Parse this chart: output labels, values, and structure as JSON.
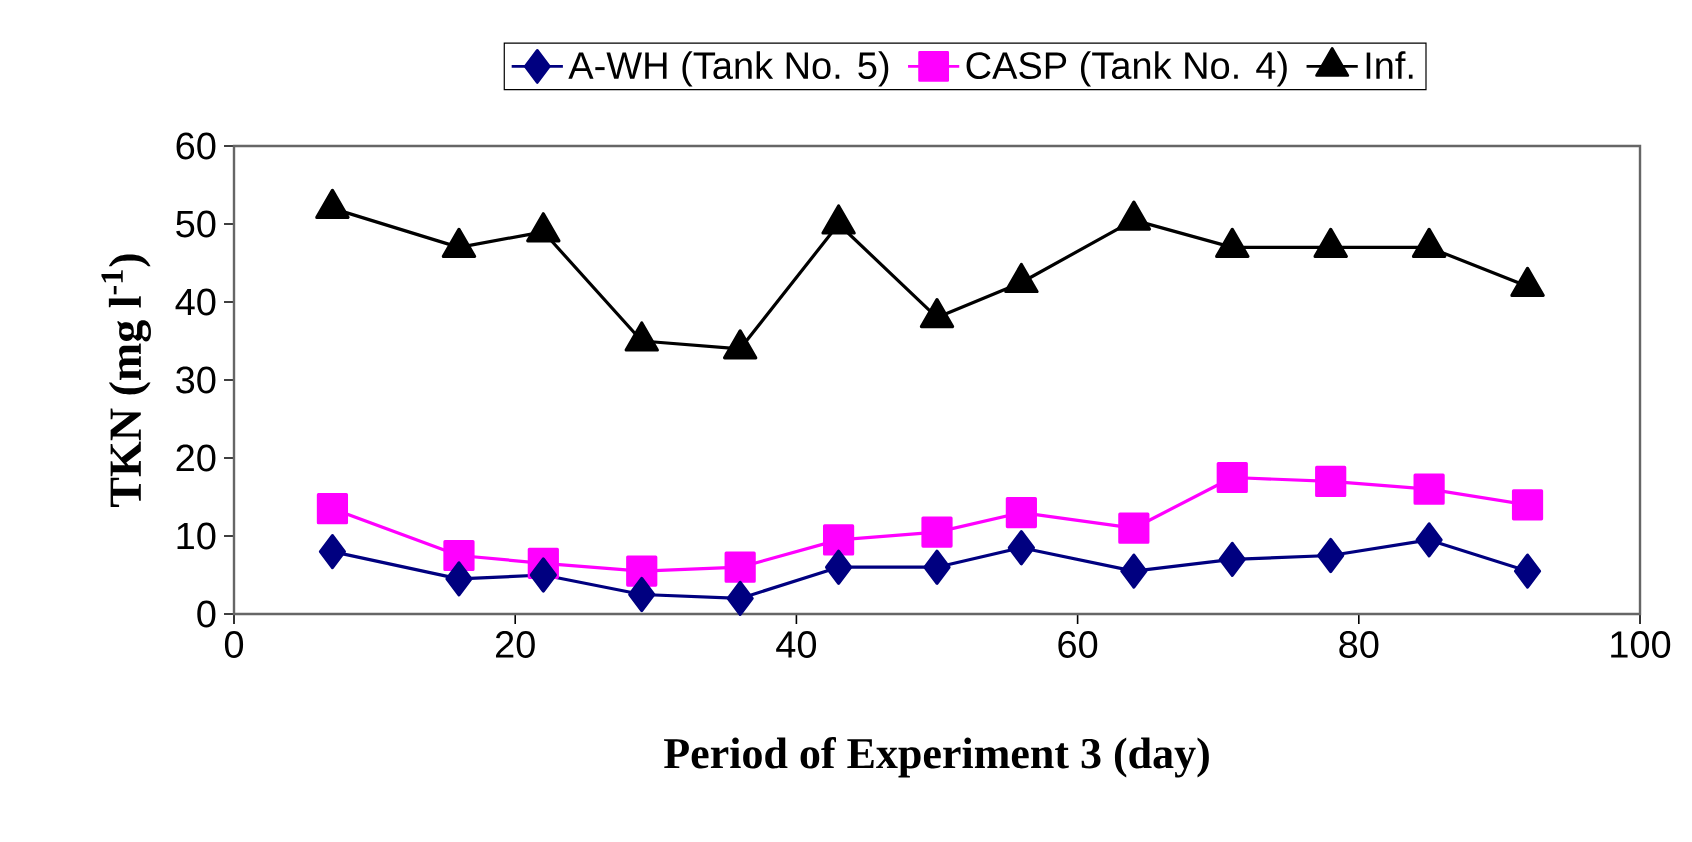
{
  "chart_data": {
    "type": "line",
    "xlabel": "Period of Experiment 3 (day)",
    "ylabel": "TKN (mg l$^{-1}$)",
    "xlim": [
      0,
      100
    ],
    "xticks": [
      0,
      20,
      40,
      60,
      80,
      100
    ],
    "ylim": [
      0,
      60
    ],
    "yticks": [
      0,
      10,
      20,
      30,
      40,
      50,
      60
    ],
    "grid": false,
    "legend": "top",
    "line_style": "solid",
    "x": [
      7,
      16,
      22,
      29,
      36,
      43,
      50,
      56,
      64,
      71,
      78,
      85,
      92
    ],
    "series": [
      {
        "name": "A-WH (Tank No. 5)",
        "color": "#000080",
        "marker": "diamond",
        "values": [
          8,
          4.5,
          5,
          2.5,
          2,
          6,
          6,
          8.5,
          5.5,
          7,
          7.5,
          9.5,
          5.5
        ]
      },
      {
        "name": "CASP (Tank No. 4)",
        "color": "#ff00ff",
        "marker": "square",
        "values": [
          13.5,
          7.5,
          6.5,
          5.5,
          6,
          9.5,
          10.5,
          13,
          11,
          17.5,
          17,
          16,
          14
        ]
      },
      {
        "name": "Inf.",
        "color": "#000000",
        "marker": "triangle",
        "values": [
          52,
          47,
          49,
          35,
          34,
          50,
          38,
          42.5,
          50.5,
          47,
          47,
          47,
          42
        ]
      }
    ]
  }
}
